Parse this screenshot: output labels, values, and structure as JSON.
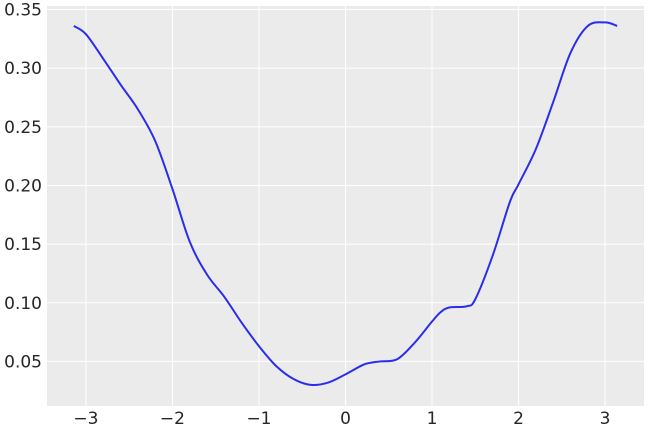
{
  "chart_data": {
    "type": "line",
    "title": "",
    "xlabel": "",
    "ylabel": "",
    "xlim": [
      -3.45,
      3.45
    ],
    "ylim": [
      0.012,
      0.353
    ],
    "grid": true,
    "background_color": "#ebebeb",
    "grid_color": "#ffffff",
    "line_color": "#2a2eec",
    "x_ticks": [
      {
        "value": -3,
        "label": "−3"
      },
      {
        "value": -2,
        "label": "−2"
      },
      {
        "value": -1,
        "label": "−1"
      },
      {
        "value": 0,
        "label": "0"
      },
      {
        "value": 1,
        "label": "1"
      },
      {
        "value": 2,
        "label": "2"
      },
      {
        "value": 3,
        "label": "3"
      }
    ],
    "y_ticks": [
      {
        "value": 0.05,
        "label": "0.05"
      },
      {
        "value": 0.1,
        "label": "0.10"
      },
      {
        "value": 0.15,
        "label": "0.15"
      },
      {
        "value": 0.2,
        "label": "0.20"
      },
      {
        "value": 0.25,
        "label": "0.25"
      },
      {
        "value": 0.3,
        "label": "0.30"
      },
      {
        "value": 0.35,
        "label": "0.35"
      }
    ],
    "series": [
      {
        "x": [
          -3.14,
          -3.0,
          -2.8,
          -2.6,
          -2.4,
          -2.2,
          -2.0,
          -1.8,
          -1.6,
          -1.4,
          -1.2,
          -1.0,
          -0.8,
          -0.6,
          -0.4,
          -0.2,
          0.0,
          0.2,
          0.3,
          0.4,
          0.6,
          0.8,
          1.0,
          1.1,
          1.2,
          1.4,
          1.5,
          1.7,
          1.9,
          2.0,
          2.2,
          2.4,
          2.6,
          2.8,
          3.0,
          3.14
        ],
        "y": [
          0.336,
          0.329,
          0.308,
          0.286,
          0.265,
          0.238,
          0.197,
          0.152,
          0.124,
          0.105,
          0.083,
          0.063,
          0.046,
          0.035,
          0.03,
          0.032,
          0.039,
          0.047,
          0.049,
          0.05,
          0.052,
          0.066,
          0.084,
          0.092,
          0.096,
          0.097,
          0.103,
          0.14,
          0.186,
          0.201,
          0.231,
          0.271,
          0.313,
          0.336,
          0.339,
          0.336
        ]
      }
    ]
  }
}
